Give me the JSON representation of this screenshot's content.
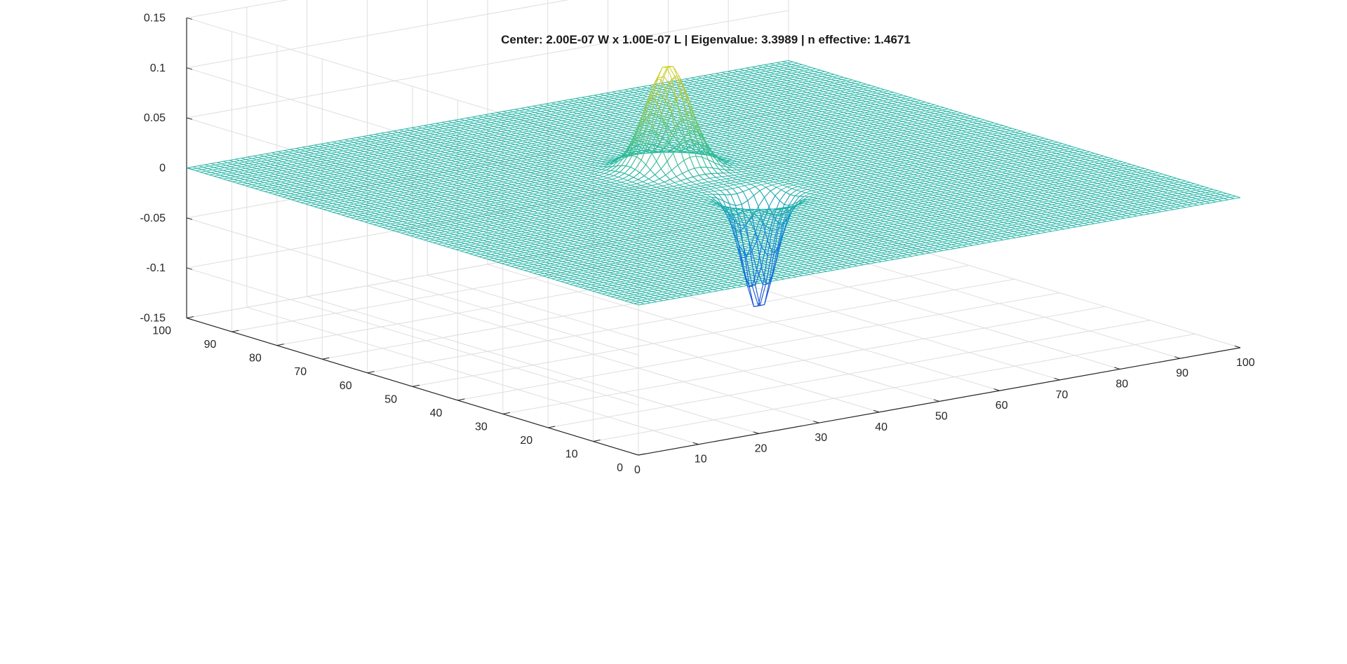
{
  "chart_data": {
    "type": "surface-mesh",
    "title": "Center: 2.00E-07 W x 1.00E-07 L | Eigenvalue: 3.3989 | n effective: 1.4671",
    "x_range": [
      0,
      100
    ],
    "y_range": [
      0,
      100
    ],
    "z_range": [
      -0.15,
      0.15
    ],
    "x_ticks": [
      0,
      10,
      20,
      30,
      40,
      50,
      60,
      70,
      80,
      90,
      100
    ],
    "y_ticks": [
      0,
      10,
      20,
      30,
      40,
      50,
      60,
      70,
      80,
      90,
      100
    ],
    "z_ticks": [
      -0.15,
      -0.1,
      -0.05,
      0,
      0.05,
      0.1,
      0.15
    ],
    "x_tick_labels": [
      "0",
      "10",
      "20",
      "30",
      "40",
      "50",
      "60",
      "70",
      "80",
      "90",
      "100"
    ],
    "y_tick_labels": [
      "0",
      "10",
      "20",
      "30",
      "40",
      "50",
      "60",
      "70",
      "80",
      "90",
      "100"
    ],
    "z_tick_labels": [
      "-0.15",
      "-0.1",
      "-0.05",
      "0",
      "0.05",
      "0.1",
      "0.15"
    ],
    "grid": true,
    "colormap": "parula",
    "grid_points": 100,
    "features": [
      {
        "kind": "peak",
        "x": 50,
        "y": 60,
        "amplitude": 0.105,
        "sigma": 3
      },
      {
        "kind": "trough",
        "x": 50,
        "y": 40,
        "amplitude": -0.115,
        "sigma": 2.2
      }
    ],
    "colors": {
      "grid_line": "#dedede",
      "axis_line": "#262626",
      "flat_surface": "#1fb4a4",
      "peak_top": "#f9e721",
      "trough_bottom": "#3a3ad8"
    }
  }
}
